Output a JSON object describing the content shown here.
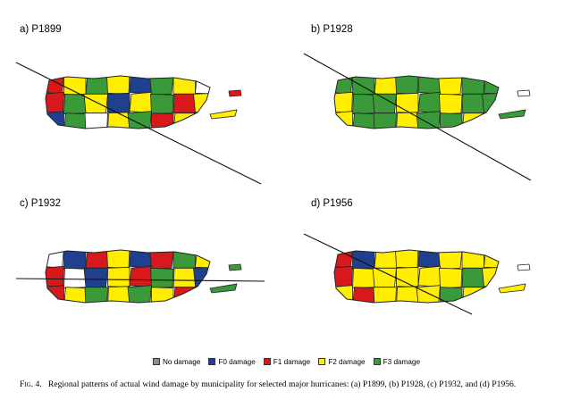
{
  "panels": [
    {
      "label": "a) P1899",
      "colors": [
        "F1",
        "F2",
        "F3",
        "F2",
        "F0",
        "F3",
        "F2",
        "none",
        "F1",
        "F3",
        "F2",
        "F0",
        "F2",
        "F3",
        "F1",
        "F2",
        "F0",
        "F3",
        "none",
        "F2",
        "F3",
        "F1",
        "F2",
        "F3"
      ]
    },
    {
      "label": "b) P1928",
      "colors": [
        "F3",
        "F3",
        "F2",
        "F3",
        "F3",
        "F2",
        "F3",
        "F3",
        "F2",
        "F3",
        "F3",
        "F2",
        "F3",
        "F2",
        "F3",
        "F3",
        "F2",
        "F3",
        "F3",
        "F2",
        "F3",
        "F3",
        "F2",
        "F3"
      ]
    },
    {
      "label": "c) P1932",
      "colors": [
        "none",
        "F0",
        "F1",
        "F2",
        "F0",
        "F1",
        "F3",
        "F2",
        "F1",
        "none",
        "F0",
        "F2",
        "F1",
        "F3",
        "F2",
        "F0",
        "F1",
        "F2",
        "F3",
        "F2",
        "F3",
        "F2",
        "F1",
        "F3"
      ]
    },
    {
      "label": "d) P1956",
      "colors": [
        "F1",
        "F0",
        "F2",
        "F2",
        "F0",
        "F2",
        "F2",
        "F2",
        "F1",
        "F2",
        "F2",
        "F2",
        "F2",
        "F2",
        "F3",
        "F2",
        "F2",
        "F1",
        "F2",
        "F2",
        "F2",
        "F3",
        "F2",
        "F2"
      ]
    }
  ],
  "islands": [
    {
      "panel": 0,
      "vieques": "F2",
      "culebra": "F1"
    },
    {
      "panel": 1,
      "vieques": "F3",
      "culebra": "none"
    },
    {
      "panel": 2,
      "vieques": "F3",
      "culebra": "F3"
    },
    {
      "panel": 3,
      "vieques": "F2",
      "culebra": "none"
    }
  ],
  "legend": [
    {
      "key": "none",
      "label": "No damage",
      "color": "#8c8c8c"
    },
    {
      "key": "F0",
      "label": "F0 damage",
      "color": "#1f3f8f"
    },
    {
      "key": "F1",
      "label": "F1 damage",
      "color": "#d7191c"
    },
    {
      "key": "F2",
      "label": "F2 damage",
      "color": "#ffee00"
    },
    {
      "key": "F3",
      "label": "F3 damage",
      "color": "#3a9a3a"
    }
  ],
  "caption": {
    "fig_label": "Fig. 4.",
    "text": "Regional patterns of actual wind damage by municipality for selected major hurricanes: (a) P1899, (b) P1928, (c) P1932, and (d) P1956."
  }
}
